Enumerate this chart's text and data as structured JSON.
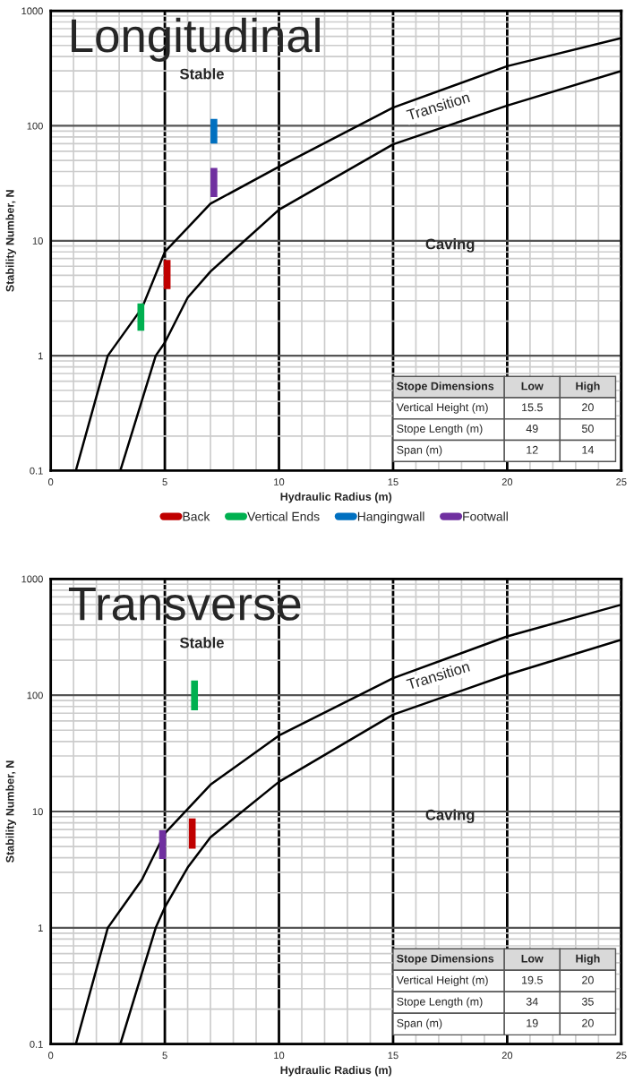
{
  "chart_data": [
    {
      "type": "line",
      "title": "Longitudinal",
      "xlabel": "Hydraulic Radius (m)",
      "ylabel": "Stability Number, N",
      "log": "y",
      "xlim": [
        0,
        25
      ],
      "ylim": [
        0.1,
        1000
      ],
      "xticks": [
        0,
        5,
        10,
        15,
        20,
        25
      ],
      "yticks": [
        0.1,
        1,
        10,
        100,
        1000
      ],
      "grid": true,
      "legend": "bottom",
      "marker": "none",
      "line_style": "solid",
      "series": [
        {
          "color": "#000000",
          "x": [
            1.1,
            2.5,
            4,
            5,
            7,
            10,
            15,
            20,
            25
          ],
          "values": [
            0.1,
            1,
            2.6,
            8,
            21,
            44,
            144,
            330,
            580
          ]
        },
        {
          "color": "#000000",
          "x": [
            3.05,
            4.6,
            5,
            6,
            7,
            10,
            15,
            20,
            25
          ],
          "values": [
            0.1,
            1,
            1.3,
            3.2,
            5.4,
            18.6,
            69,
            150,
            300
          ]
        },
        {
          "name": "Back",
          "type": "bar",
          "color": "#c00000",
          "x": [
            5.1
          ],
          "base": [
            3.8
          ],
          "values": [
            3.0
          ]
        },
        {
          "name": "Vertical Ends",
          "type": "bar",
          "color": "#00b050",
          "x": [
            3.95
          ],
          "base": [
            1.65
          ],
          "values": [
            1.2
          ]
        },
        {
          "name": "Hangingwall",
          "type": "bar",
          "color": "#0070c0",
          "x": [
            7.15
          ],
          "base": [
            70
          ],
          "values": [
            45
          ]
        },
        {
          "name": "Footwall",
          "type": "bar",
          "color": "#7030a0",
          "x": [
            7.15
          ],
          "base": [
            24
          ],
          "values": [
            19
          ]
        }
      ],
      "annotations": [
        "Stable",
        "Caving",
        "Transition",
        "Stope Dimensions",
        "Low",
        "High",
        "Vertical Height (m)",
        "15.5",
        "20",
        "Stope Length (m)",
        "49",
        "50",
        "Span (m)",
        "12",
        "14"
      ]
    },
    {
      "type": "line",
      "title": "Transverse",
      "xlabel": "Hydraulic Radius (m)",
      "ylabel": "Stability Number, N",
      "log": "y",
      "xlim": [
        0,
        25
      ],
      "ylim": [
        0.1,
        1000
      ],
      "xticks": [
        0,
        5,
        10,
        15,
        20,
        25
      ],
      "yticks": [
        0.1,
        1,
        10,
        100,
        1000
      ],
      "grid": true,
      "marker": "none",
      "line_style": "solid",
      "series": [
        {
          "color": "#000000",
          "x": [
            1.1,
            2.5,
            4,
            5,
            7,
            10,
            15,
            20,
            25
          ],
          "values": [
            0.1,
            1,
            2.6,
            6.5,
            17,
            45,
            140,
            320,
            600
          ]
        },
        {
          "color": "#000000",
          "x": [
            3.05,
            4.6,
            5,
            6,
            7,
            10,
            15,
            20,
            25
          ],
          "values": [
            0.1,
            1,
            1.5,
            3.3,
            6,
            18,
            68,
            150,
            300
          ]
        },
        {
          "type": "bar",
          "color": "#c00000",
          "x": [
            6.2
          ],
          "base": [
            4.8
          ],
          "values": [
            3.9
          ]
        },
        {
          "type": "bar",
          "color": "#00b050",
          "x": [
            6.3
          ],
          "base": [
            74
          ],
          "values": [
            60
          ]
        },
        {
          "type": "bar",
          "color": "#7030a0",
          "x": [
            4.9
          ],
          "base": [
            3.9
          ],
          "values": [
            3.0
          ]
        }
      ],
      "annotations": [
        "Stable",
        "Caving",
        "Transition",
        "Stope Dimensions",
        "Low",
        "High",
        "Vertical Height (m)",
        "19.5",
        "20",
        "Stope Length (m)",
        "34",
        "35",
        "Span (m)",
        "19",
        "20"
      ]
    }
  ]
}
